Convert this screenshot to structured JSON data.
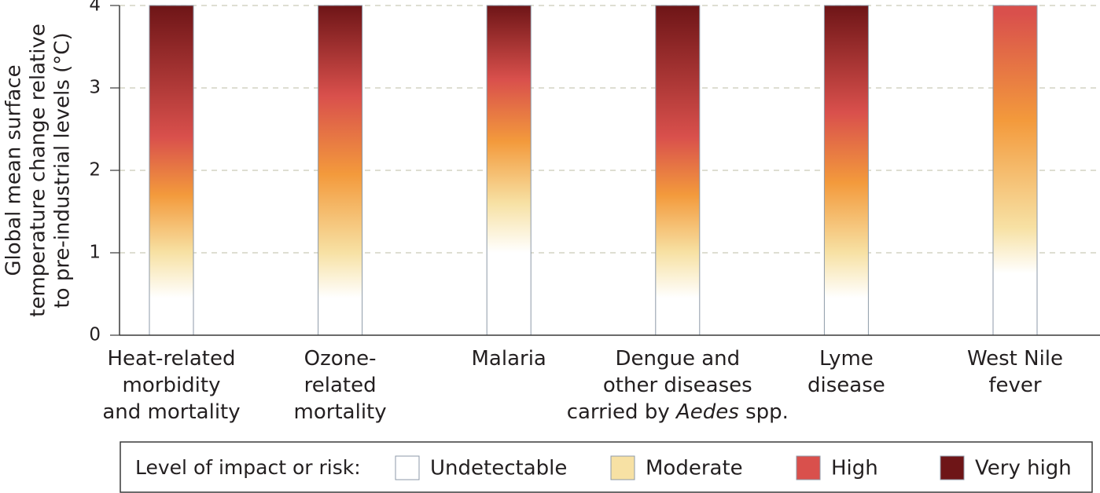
{
  "chart_data": {
    "type": "ember",
    "y_label": [
      "Global mean surface",
      "temperature change relative",
      "to pre-industrial levels (°C)"
    ],
    "categories": [
      [
        [
          {
            "text": "Heat-related"
          }
        ],
        [
          {
            "text": "morbidity"
          }
        ],
        [
          {
            "text": "and mortality"
          }
        ]
      ],
      [
        [
          {
            "text": "Ozone-"
          }
        ],
        [
          {
            "text": "related"
          }
        ],
        [
          {
            "text": "mortality"
          }
        ]
      ],
      [
        [
          {
            "text": "Malaria"
          }
        ]
      ],
      [
        [
          {
            "text": "Dengue and"
          }
        ],
        [
          {
            "text": "other diseases"
          }
        ],
        [
          {
            "text": "carried by "
          },
          {
            "text": "Aedes",
            "style": "italic"
          },
          {
            "text": " spp."
          }
        ]
      ],
      [
        [
          {
            "text": "Lyme"
          }
        ],
        [
          {
            "text": "disease"
          }
        ]
      ],
      [
        [
          {
            "text": "West Nile"
          }
        ],
        [
          {
            "text": "fever"
          }
        ]
      ]
    ],
    "values": [
      4,
      4,
      4,
      4,
      4,
      4
    ],
    "legend_title": "Level of impact or risk:",
    "series": [
      {
        "name": "Undetectable",
        "color": "#ffffff",
        "values": [
          0.45,
          0.45,
          1.0,
          0.45,
          0.45,
          0.75
        ]
      },
      {
        "name": "Moderate",
        "color": "#f7e1a4",
        "values": [
          1.0,
          1.0,
          1.6,
          1.0,
          1.0,
          1.3
        ]
      },
      {
        "name": "High",
        "color": "#d9504c",
        "values": [
          2.4,
          2.9,
          3.1,
          2.4,
          2.7,
          3.9
        ]
      },
      {
        "name": "Very high",
        "color": "#6e1517",
        "values": [
          4.0,
          4.0,
          4.0,
          4.0,
          4.0,
          null
        ]
      }
    ],
    "ylim": [
      0,
      4
    ],
    "yticks": [
      0,
      1,
      2,
      3,
      4
    ],
    "grid": true
  }
}
